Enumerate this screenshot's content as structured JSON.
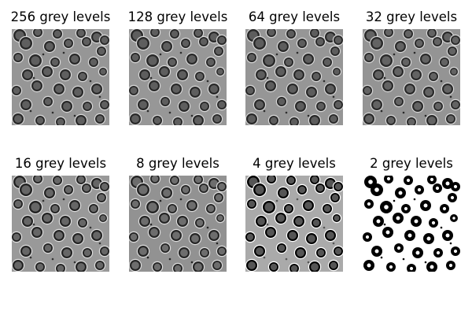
{
  "figure": {
    "panels": [
      {
        "title": "256 grey levels",
        "levels": 256
      },
      {
        "title": "128 grey levels",
        "levels": 128
      },
      {
        "title": "64 grey levels",
        "levels": 64
      },
      {
        "title": "32 grey levels",
        "levels": 32
      },
      {
        "title": "16 grey levels",
        "levels": 16
      },
      {
        "title": "8 grey levels",
        "levels": 8
      },
      {
        "title": "4 grey levels",
        "levels": 4
      },
      {
        "title": "2 grey levels",
        "levels": 2
      }
    ]
  }
}
